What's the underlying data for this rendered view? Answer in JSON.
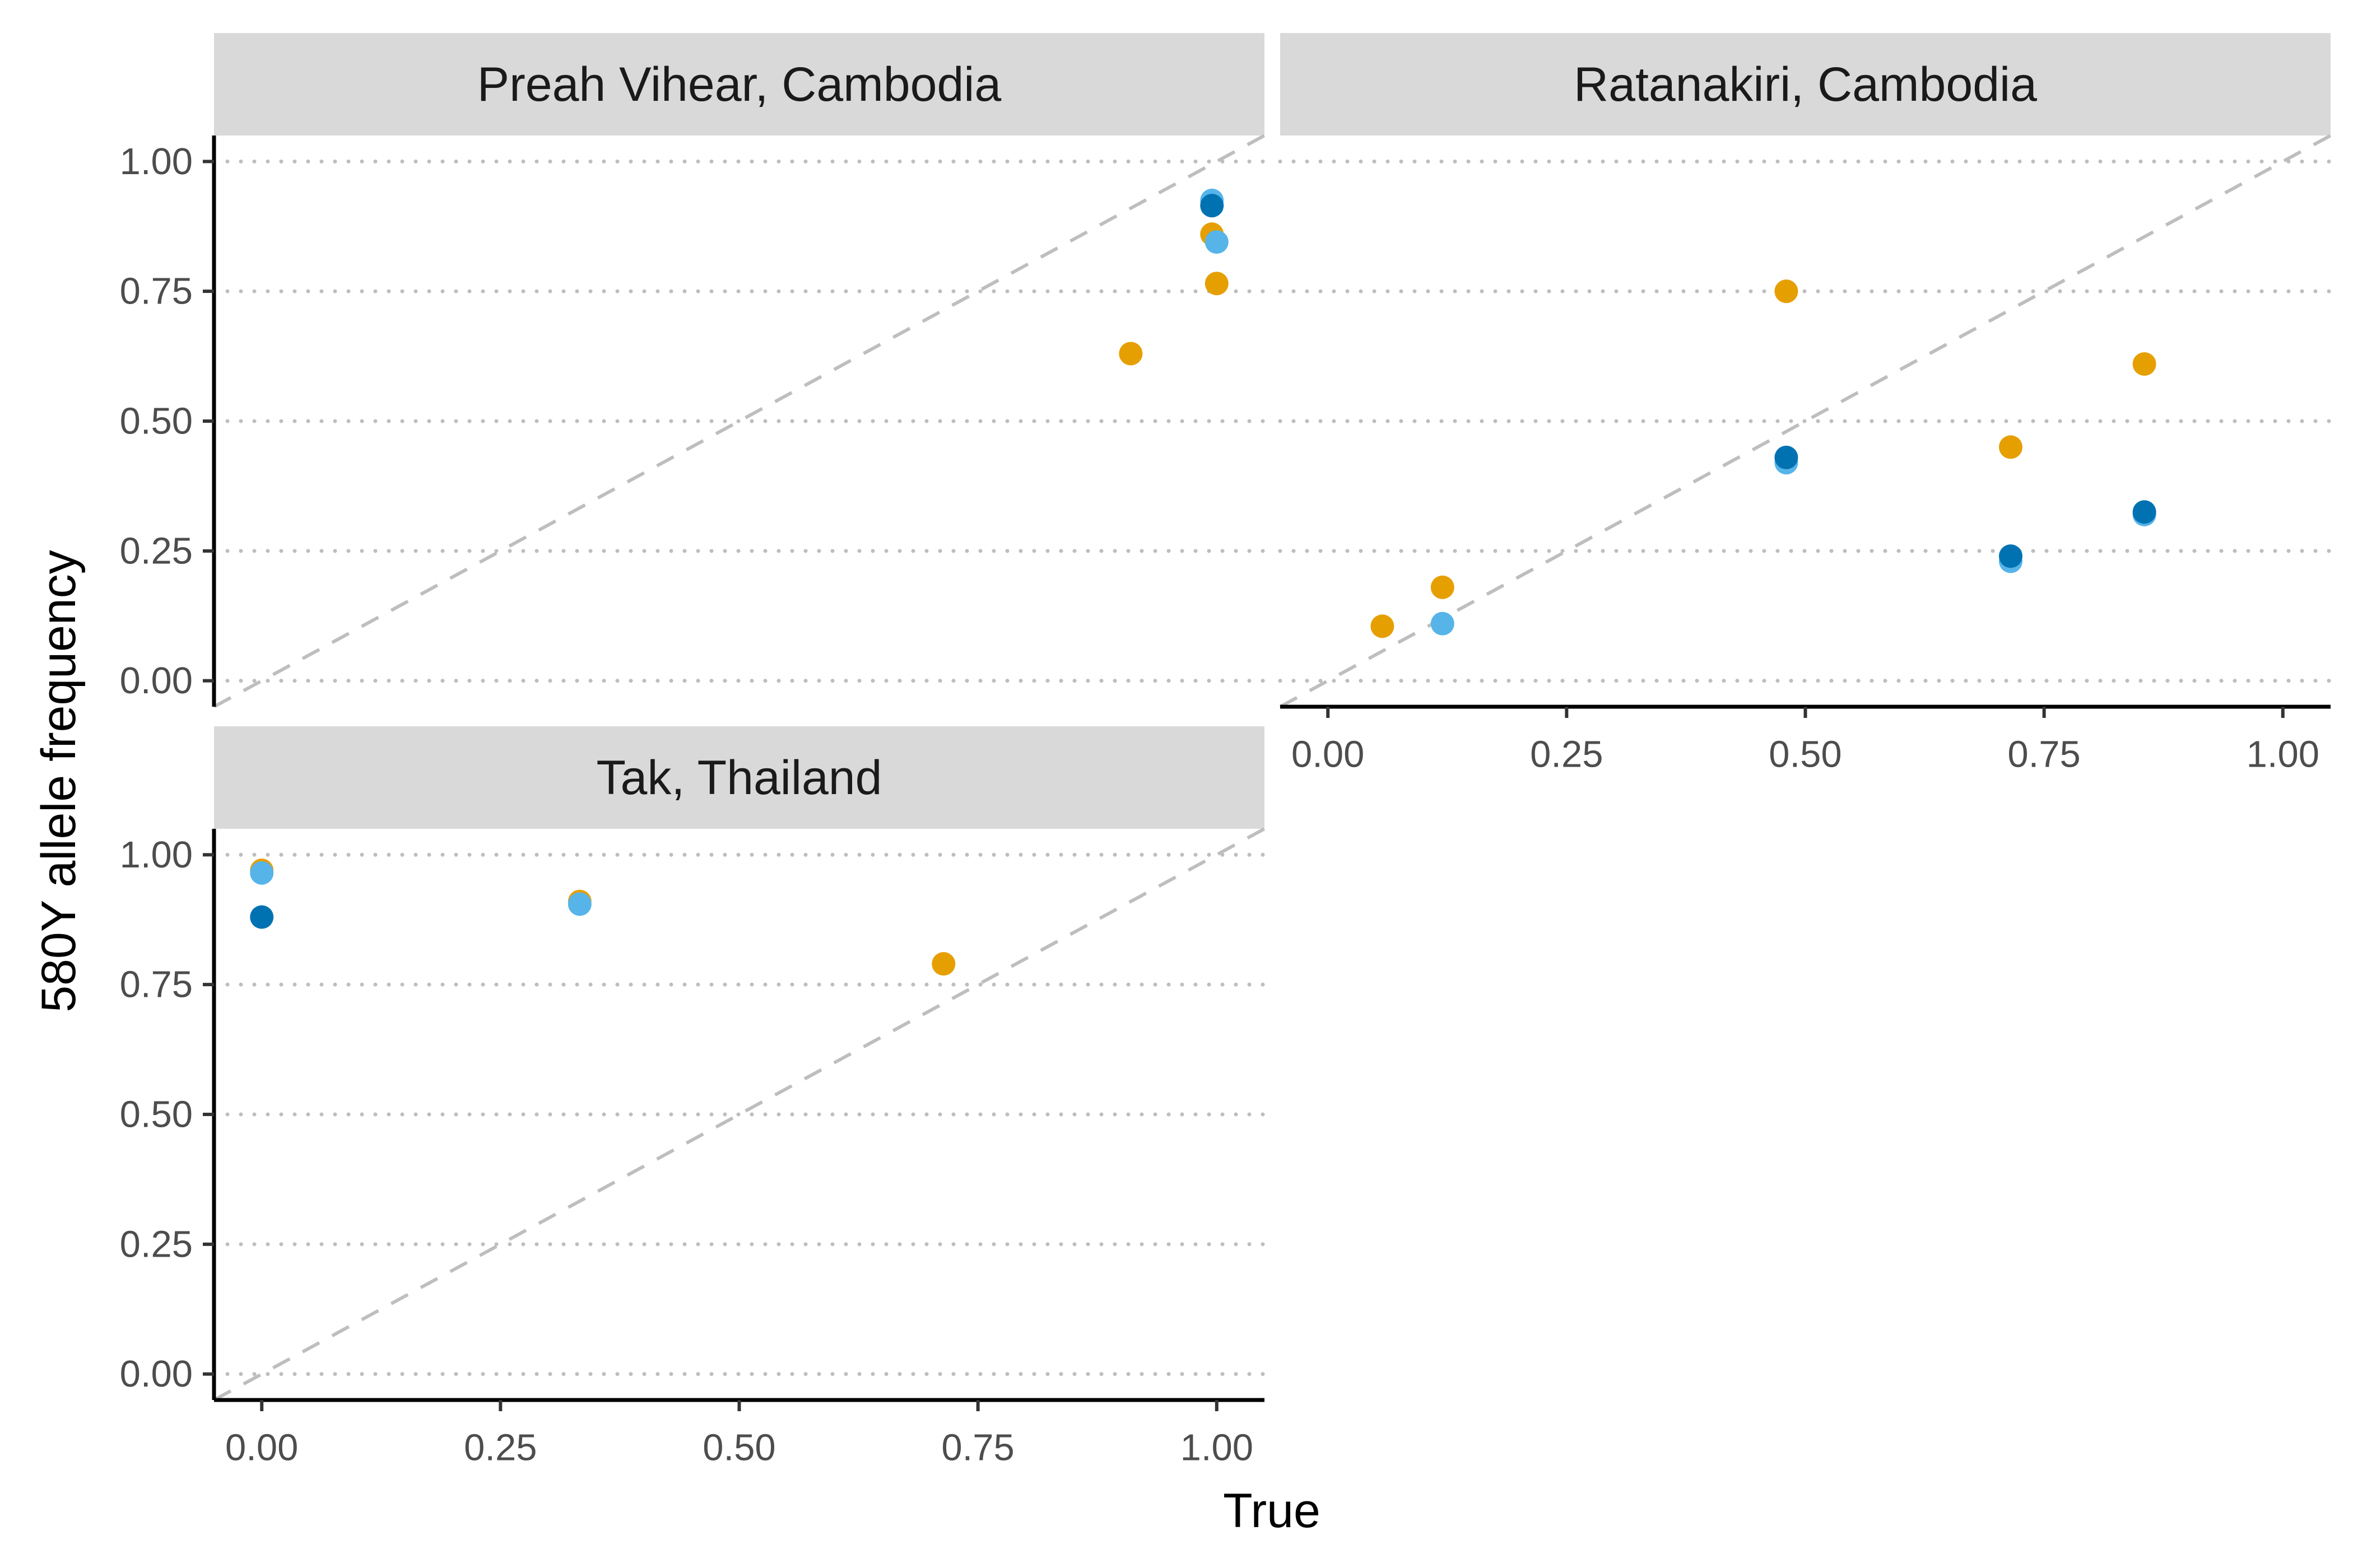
{
  "chart_data": {
    "type": "scatter",
    "xlabel": "True",
    "ylabel": "580Y allele frequency",
    "xlim": [
      -0.05,
      1.05
    ],
    "ylim": [
      -0.05,
      1.05
    ],
    "x_ticks": [
      "0.00",
      "0.25",
      "0.50",
      "0.75",
      "1.00"
    ],
    "y_ticks": [
      "0.00",
      "0.25",
      "0.50",
      "0.75",
      "1.00"
    ],
    "grid": "horizontal dotted",
    "reference_line": "y = x (dashed)",
    "colors": {
      "orange": "#E69F00",
      "light_blue": "#56B4E9",
      "dark_blue": "#0072B2",
      "reference_line": "#BEBEBE",
      "strip": "#D9D9D9"
    },
    "panels": [
      {
        "title": "Preah Vihear, Cambodia",
        "points": [
          {
            "x": 0.995,
            "y": 0.925,
            "color": "light_blue"
          },
          {
            "x": 0.995,
            "y": 0.915,
            "color": "dark_blue"
          },
          {
            "x": 0.995,
            "y": 0.86,
            "color": "orange"
          },
          {
            "x": 1.0,
            "y": 0.845,
            "color": "light_blue"
          },
          {
            "x": 1.0,
            "y": 0.765,
            "color": "orange"
          },
          {
            "x": 0.91,
            "y": 0.63,
            "color": "orange"
          }
        ]
      },
      {
        "title": "Ratanakiri, Cambodia",
        "points": [
          {
            "x": 0.057,
            "y": 0.105,
            "color": "orange"
          },
          {
            "x": 0.12,
            "y": 0.18,
            "color": "orange"
          },
          {
            "x": 0.12,
            "y": 0.11,
            "color": "light_blue"
          },
          {
            "x": 0.48,
            "y": 0.75,
            "color": "orange"
          },
          {
            "x": 0.48,
            "y": 0.42,
            "color": "light_blue"
          },
          {
            "x": 0.48,
            "y": 0.43,
            "color": "dark_blue"
          },
          {
            "x": 0.715,
            "y": 0.45,
            "color": "orange"
          },
          {
            "x": 0.715,
            "y": 0.23,
            "color": "light_blue"
          },
          {
            "x": 0.715,
            "y": 0.24,
            "color": "dark_blue"
          },
          {
            "x": 0.855,
            "y": 0.61,
            "color": "orange"
          },
          {
            "x": 0.855,
            "y": 0.32,
            "color": "light_blue"
          },
          {
            "x": 0.855,
            "y": 0.325,
            "color": "dark_blue"
          }
        ]
      },
      {
        "title": "Tak, Thailand",
        "points": [
          {
            "x": 0.0,
            "y": 0.97,
            "color": "orange"
          },
          {
            "x": 0.0,
            "y": 0.965,
            "color": "light_blue"
          },
          {
            "x": 0.0,
            "y": 0.88,
            "color": "dark_blue"
          },
          {
            "x": 0.333,
            "y": 0.91,
            "color": "orange"
          },
          {
            "x": 0.333,
            "y": 0.905,
            "color": "light_blue"
          },
          {
            "x": 0.714,
            "y": 0.79,
            "color": "orange"
          }
        ]
      }
    ]
  }
}
